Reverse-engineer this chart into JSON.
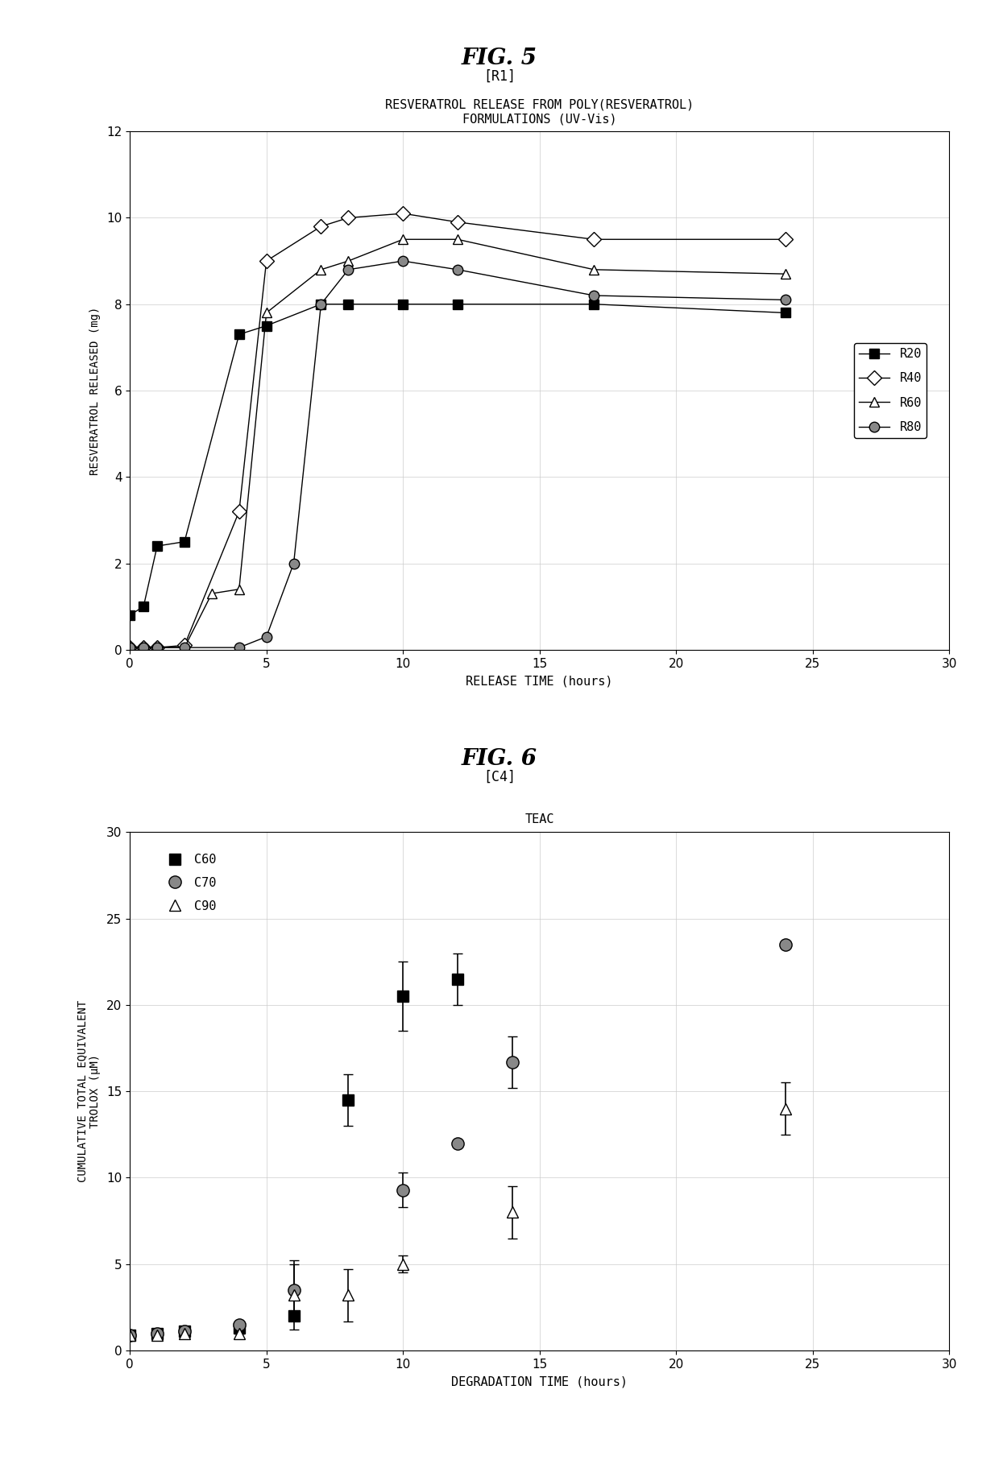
{
  "fig5": {
    "title_fig": "FIG. 5",
    "subtitle_fig": "[R1]",
    "chart_title": "RESVERATROL RELEASE FROM POLY(RESVERATROL)\nFORMULATIONS (UV-Vis)",
    "xlabel": "RELEASE TIME (hours)",
    "ylabel": "RESVERATROL RELEASED (mg)",
    "xlim": [
      0,
      30
    ],
    "ylim": [
      0,
      12.0
    ],
    "xticks": [
      0,
      5,
      10,
      15,
      20,
      25,
      30
    ],
    "yticks": [
      0.0,
      2.0,
      4.0,
      6.0,
      8.0,
      10.0,
      12.0
    ],
    "R20": {
      "x": [
        0,
        0.5,
        1,
        2,
        4,
        5,
        7,
        8,
        10,
        12,
        17,
        24
      ],
      "y": [
        0.8,
        1.0,
        2.4,
        2.5,
        7.3,
        7.5,
        8.0,
        8.0,
        8.0,
        8.0,
        8.0,
        7.8
      ]
    },
    "R40": {
      "x": [
        0,
        0.5,
        1,
        2,
        4,
        5,
        7,
        8,
        10,
        12,
        17,
        24
      ],
      "y": [
        0.05,
        0.05,
        0.05,
        0.1,
        3.2,
        9.0,
        9.8,
        10.0,
        10.1,
        9.9,
        9.5,
        9.5
      ]
    },
    "R60": {
      "x": [
        0,
        0.5,
        1,
        2,
        3,
        4,
        5,
        7,
        8,
        10,
        12,
        17,
        24
      ],
      "y": [
        0.05,
        0.05,
        0.05,
        0.05,
        1.3,
        1.4,
        7.8,
        8.8,
        9.0,
        9.5,
        9.5,
        8.8,
        8.7
      ]
    },
    "R80": {
      "x": [
        0,
        0.5,
        1,
        2,
        4,
        5,
        6,
        7,
        8,
        10,
        12,
        17,
        24
      ],
      "y": [
        0.05,
        0.05,
        0.05,
        0.05,
        0.05,
        0.3,
        2.0,
        8.0,
        8.8,
        9.0,
        8.8,
        8.2,
        8.1
      ]
    }
  },
  "fig6": {
    "title_fig": "FIG. 6",
    "subtitle_fig": "[C4]",
    "chart_title": "TEAC",
    "xlabel": "DEGRADATION TIME (hours)",
    "ylabel": "CUMULATIVE TOTAL EQUIVALENT\nTROLOX (μM)",
    "xlim": [
      0,
      30
    ],
    "ylim": [
      0,
      30
    ],
    "xticks": [
      0,
      5,
      10,
      15,
      20,
      25,
      30
    ],
    "yticks": [
      0,
      5,
      10,
      15,
      20,
      25,
      30
    ],
    "C60": {
      "x": [
        0,
        1,
        2,
        4,
        6,
        8,
        10,
        12
      ],
      "y": [
        0.9,
        1.0,
        1.1,
        1.3,
        2.0,
        14.5,
        20.5,
        21.5
      ],
      "yerr": [
        0,
        0,
        0,
        0,
        0,
        1.5,
        2.0,
        1.5
      ]
    },
    "C70": {
      "x": [
        0,
        1,
        2,
        4,
        6,
        10,
        12,
        14,
        24
      ],
      "y": [
        0.9,
        1.0,
        1.1,
        1.5,
        3.5,
        9.3,
        12.0,
        16.7,
        23.5
      ],
      "yerr": [
        0,
        0,
        0,
        0,
        1.5,
        1.0,
        0,
        1.5,
        0
      ]
    },
    "C90": {
      "x": [
        0,
        1,
        2,
        4,
        6,
        8,
        10,
        14,
        24
      ],
      "y": [
        0.9,
        0.9,
        1.0,
        1.0,
        3.2,
        3.2,
        5.0,
        8.0,
        14.0
      ],
      "yerr": [
        0,
        0,
        0,
        0,
        2.0,
        1.5,
        0.5,
        1.5,
        1.5
      ]
    }
  }
}
